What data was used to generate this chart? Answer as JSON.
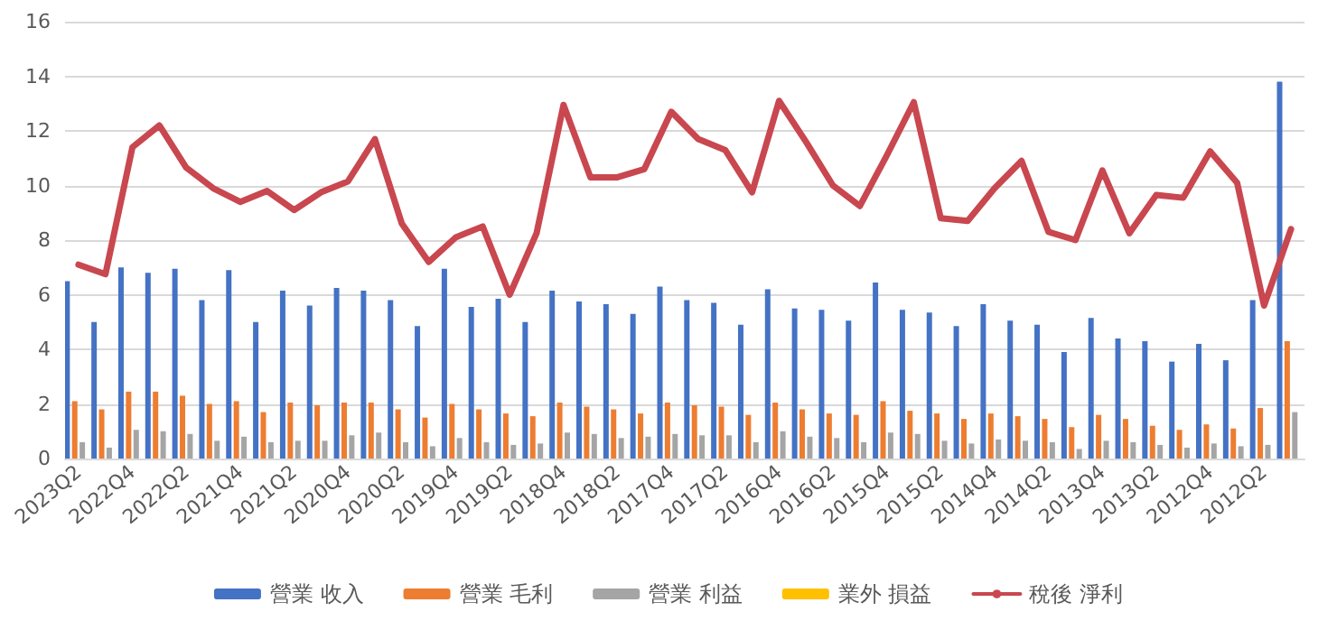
{
  "chart_data": {
    "type": "bar",
    "categories": [
      "2023Q2",
      null,
      "2022Q4",
      null,
      "2022Q2",
      null,
      "2021Q4",
      null,
      "2021Q2",
      null,
      "2020Q4",
      null,
      "2020Q2",
      null,
      "2019Q4",
      null,
      "2019Q2",
      null,
      "2018Q4",
      null,
      "2018Q2",
      null,
      "2017Q4",
      null,
      "2017Q2",
      null,
      "2016Q4",
      null,
      "2016Q2",
      null,
      "2015Q4",
      null,
      "2015Q2",
      null,
      "2014Q4",
      null,
      "2014Q2",
      null,
      "2013Q4",
      null,
      "2013Q2",
      null,
      "2012Q4",
      null,
      "2012Q2",
      null
    ],
    "series": [
      {
        "name": "營業 收入",
        "color": "#4472c4",
        "values": [
          6.5,
          5.0,
          7.0,
          6.8,
          6.95,
          5.8,
          6.9,
          5.0,
          6.15,
          5.6,
          6.25,
          6.15,
          5.8,
          4.85,
          6.95,
          5.55,
          5.85,
          5.0,
          6.15,
          5.75,
          5.65,
          5.3,
          6.3,
          5.8,
          5.7,
          4.9,
          6.2,
          5.5,
          5.45,
          5.05,
          6.45,
          5.45,
          5.35,
          4.85,
          5.65,
          5.05,
          4.9,
          3.9,
          5.15,
          4.4,
          4.3,
          3.55,
          4.2,
          3.6,
          5.8,
          13.8
        ]
      },
      {
        "name": "營業 毛利",
        "color": "#ed7d31",
        "values": [
          2.1,
          1.8,
          2.45,
          2.45,
          2.3,
          2.0,
          2.1,
          1.7,
          2.05,
          1.95,
          2.05,
          2.05,
          1.8,
          1.5,
          2.0,
          1.8,
          1.65,
          1.55,
          2.05,
          1.9,
          1.8,
          1.65,
          2.05,
          1.95,
          1.9,
          1.6,
          2.05,
          1.8,
          1.65,
          1.6,
          2.1,
          1.75,
          1.65,
          1.45,
          1.65,
          1.55,
          1.45,
          1.15,
          1.6,
          1.45,
          1.2,
          1.05,
          1.25,
          1.1,
          1.85,
          4.3
        ]
      },
      {
        "name": "營業 利益",
        "color": "#a5a5a5",
        "values": [
          0.6,
          0.4,
          1.05,
          1.0,
          0.9,
          0.65,
          0.8,
          0.6,
          0.65,
          0.65,
          0.85,
          0.95,
          0.6,
          0.45,
          0.75,
          0.6,
          0.5,
          0.55,
          0.95,
          0.9,
          0.75,
          0.8,
          0.9,
          0.85,
          0.85,
          0.6,
          1.0,
          0.8,
          0.75,
          0.6,
          0.95,
          0.9,
          0.65,
          0.55,
          0.7,
          0.65,
          0.6,
          0.35,
          0.65,
          0.6,
          0.5,
          0.4,
          0.55,
          0.45,
          0.5,
          1.7
        ]
      },
      {
        "name": "業外 損益",
        "color": "#ffc000",
        "values": [
          0,
          0,
          0,
          0,
          0,
          0,
          0,
          0,
          0,
          0,
          0,
          0,
          0,
          0,
          0,
          0,
          0,
          0,
          0,
          0,
          0,
          0,
          0,
          0,
          0,
          0,
          0,
          0,
          0,
          0,
          0,
          0,
          0,
          0,
          0,
          0,
          0,
          0,
          0,
          0,
          0,
          0,
          0,
          0,
          0,
          0
        ]
      },
      {
        "name": "稅後 淨利",
        "type": "line",
        "color": "#c9474f",
        "values": [
          7.1,
          6.75,
          11.4,
          12.2,
          10.65,
          9.9,
          9.4,
          9.8,
          9.1,
          9.75,
          10.15,
          11.7,
          8.6,
          7.2,
          8.1,
          8.5,
          6.0,
          8.25,
          12.95,
          10.3,
          10.3,
          10.6,
          12.7,
          11.7,
          11.3,
          9.75,
          13.1,
          11.6,
          10.0,
          9.25,
          11.1,
          13.05,
          8.8,
          8.7,
          9.9,
          10.9,
          8.3,
          8.0,
          10.55,
          8.25,
          9.65,
          9.55,
          11.25,
          10.1,
          5.6,
          8.4
        ]
      }
    ],
    "ylim": [
      0,
      16
    ],
    "yticks": [
      0,
      2,
      4,
      6,
      8,
      10,
      12,
      14,
      16
    ],
    "grid": "y",
    "legend": "bottom",
    "marker": "none",
    "line_style": "solid"
  }
}
